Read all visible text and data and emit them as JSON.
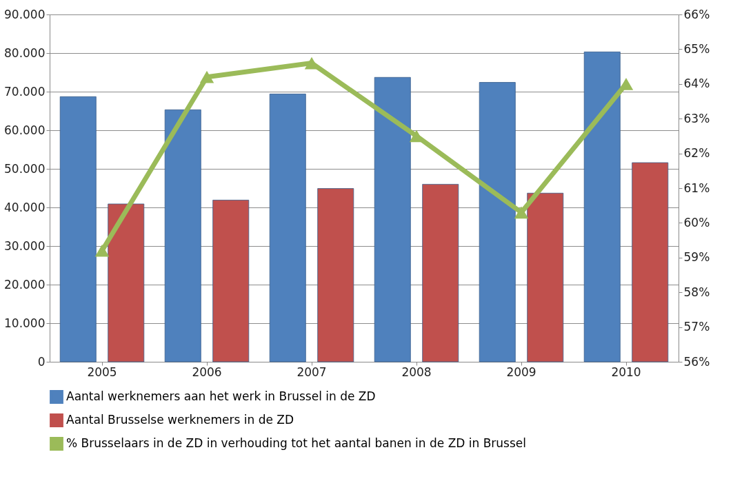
{
  "chart_data": {
    "type": "bar",
    "categories": [
      "2005",
      "2006",
      "2007",
      "2008",
      "2009",
      "2010"
    ],
    "series": [
      {
        "name": "Aantal werknemers aan het werk in Brussel in de ZD",
        "color": "#4f81bd",
        "values": [
          68700,
          65300,
          69400,
          73700,
          72400,
          80300
        ]
      },
      {
        "name": "Aantal Brusselse werknemers in de ZD",
        "color": "#c0504d",
        "values": [
          40900,
          41900,
          44900,
          46000,
          43700,
          51600
        ]
      },
      {
        "name": "% Brusselaars in de ZD in verhouding tot het aantal banen in de ZD in Brussel",
        "color": "#9bbb59",
        "type": "line",
        "axis": "y2",
        "marker": "triangle",
        "values": [
          59.2,
          64.2,
          64.6,
          62.5,
          60.3,
          64.0
        ]
      }
    ],
    "ylim": [
      0,
      90000
    ],
    "yticks": [
      {
        "value": 0,
        "label": "0"
      },
      {
        "value": 10000,
        "label": "10.000"
      },
      {
        "value": 20000,
        "label": "20.000"
      },
      {
        "value": 30000,
        "label": "30.000"
      },
      {
        "value": 40000,
        "label": "40.000"
      },
      {
        "value": 50000,
        "label": "50.000"
      },
      {
        "value": 60000,
        "label": "60.000"
      },
      {
        "value": 70000,
        "label": "70.000"
      },
      {
        "value": 80000,
        "label": "80.000"
      },
      {
        "value": 90000,
        "label": "90.000"
      }
    ],
    "y2lim": [
      56,
      66
    ],
    "y2ticks": [
      {
        "value": 56,
        "label": "56%"
      },
      {
        "value": 57,
        "label": "57%"
      },
      {
        "value": 58,
        "label": "58%"
      },
      {
        "value": 59,
        "label": "59%"
      },
      {
        "value": 60,
        "label": "60%"
      },
      {
        "value": 61,
        "label": "61%"
      },
      {
        "value": 62,
        "label": "62%"
      },
      {
        "value": 63,
        "label": "63%"
      },
      {
        "value": 64,
        "label": "64%"
      },
      {
        "value": 65,
        "label": "65%"
      },
      {
        "value": 66,
        "label": "66%"
      }
    ],
    "grid": "y",
    "legend": "bottom"
  }
}
